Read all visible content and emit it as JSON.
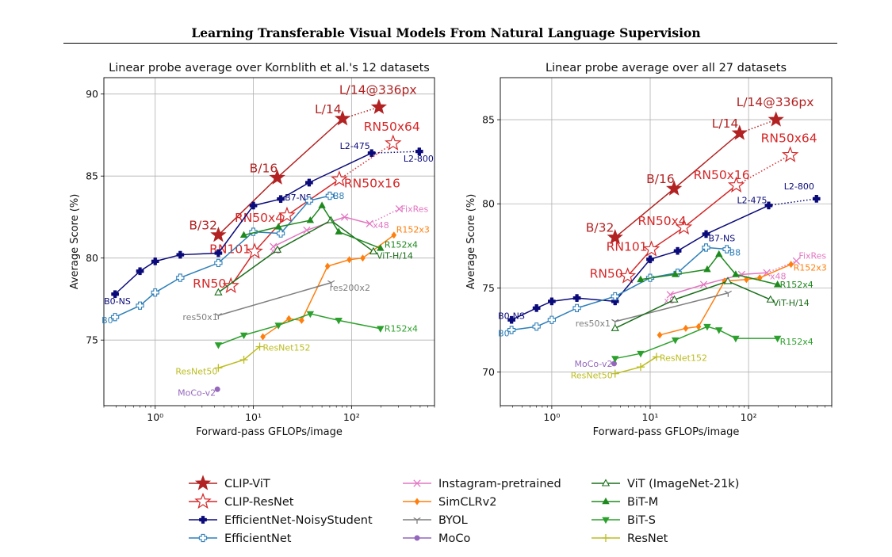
{
  "page": {
    "title": "Learning Transferable Visual Models From Natural Language Supervision"
  },
  "series_styles": {
    "CLIP-ViT": {
      "color": "#b22222",
      "marker": "star-filled",
      "dotted_last": true
    },
    "CLIP-ResNet": {
      "color": "#d62728",
      "marker": "star-open",
      "dotted_last": true
    },
    "EfficientNet-NoisyStudent": {
      "color": "#0a0a7a",
      "marker": "plus-filled",
      "dotted_last": true
    },
    "EfficientNet": {
      "color": "#2e7fb8",
      "marker": "plus-open"
    },
    "Instagram-pretrained": {
      "color": "#e377c2",
      "marker": "x",
      "dotted_last": true
    },
    "SimCLRv2": {
      "color": "#ff7f0e",
      "marker": "diamond"
    },
    "BYOL": {
      "color": "#7f7f7f",
      "marker": "tri-down"
    },
    "MoCo": {
      "color": "#9467bd",
      "marker": "circle"
    },
    "ViT (ImageNet-21k)": {
      "color": "#1a6e1a",
      "marker": "triangle-open"
    },
    "BiT-M": {
      "color": "#1e8a1e",
      "marker": "triangle"
    },
    "BiT-S": {
      "color": "#2ca02c",
      "marker": "triangle-down"
    },
    "ResNet": {
      "color": "#bcbd22",
      "marker": "plus-thin"
    }
  },
  "legend": {
    "columns": [
      [
        "CLIP-ViT",
        "CLIP-ResNet",
        "EfficientNet-NoisyStudent",
        "EfficientNet"
      ],
      [
        "Instagram-pretrained",
        "SimCLRv2",
        "BYOL",
        "MoCo"
      ],
      [
        "ViT (ImageNet-21k)",
        "BiT-M",
        "BiT-S",
        "ResNet"
      ]
    ]
  },
  "chart_data": [
    {
      "type": "line",
      "title": "Linear probe average over Kornblith et al.'s 12 datasets",
      "xlabel": "Forward-pass GFLOPs/image",
      "ylabel": "Average Score (%)",
      "xscale": "log",
      "xlim": [
        0.3,
        700
      ],
      "ylim": [
        71,
        91
      ],
      "xticks": [
        1,
        10,
        100
      ],
      "xtick_labels": [
        "10⁰",
        "10¹",
        "10²"
      ],
      "yticks": [
        75,
        80,
        85,
        90
      ],
      "grid": true,
      "series": [
        {
          "name": "CLIP-ViT",
          "x": [
            4.4,
            17.5,
            81,
            190
          ],
          "y": [
            81.4,
            84.9,
            88.5,
            89.2
          ],
          "labels": [
            {
              "i": 0,
              "text": "B/32"
            },
            {
              "i": 1,
              "text": "B/16"
            },
            {
              "i": 2,
              "text": "L/14"
            },
            {
              "i": 3,
              "text": "L/14@336px"
            }
          ]
        },
        {
          "name": "CLIP-ResNet",
          "x": [
            5.9,
            10.3,
            22,
            75,
            265
          ],
          "y": [
            78.3,
            80.4,
            82.6,
            84.8,
            87.0
          ],
          "labels": [
            {
              "i": 0,
              "text": "RN50"
            },
            {
              "i": 1,
              "text": "RN101"
            },
            {
              "i": 2,
              "text": "RN50x4"
            },
            {
              "i": 3,
              "text": "RN50x16"
            },
            {
              "i": 4,
              "text": "RN50x64"
            }
          ]
        },
        {
          "name": "EfficientNet-NoisyStudent",
          "x": [
            0.39,
            0.7,
            1.0,
            1.8,
            4.4,
            10,
            19,
            37,
            160,
            490
          ],
          "y": [
            77.8,
            79.2,
            79.8,
            80.2,
            80.3,
            83.2,
            83.6,
            84.6,
            86.4,
            86.5
          ],
          "labels": [
            {
              "i": 0,
              "text": "B0-NS"
            },
            {
              "i": 6,
              "text": "B7-NS"
            },
            {
              "i": 8,
              "text": "L2-475"
            },
            {
              "i": 9,
              "text": "L2-800"
            }
          ]
        },
        {
          "name": "EfficientNet",
          "x": [
            0.39,
            0.7,
            1.0,
            1.8,
            4.4,
            10,
            19,
            37,
            60
          ],
          "y": [
            76.4,
            77.1,
            77.9,
            78.8,
            79.7,
            81.6,
            81.5,
            83.5,
            83.8
          ],
          "labels": [
            {
              "i": 0,
              "text": "B0"
            },
            {
              "i": 8,
              "text": "B8"
            }
          ]
        },
        {
          "name": "Instagram-pretrained",
          "x": [
            16,
            35,
            85,
            153,
            306
          ],
          "y": [
            80.7,
            81.7,
            82.5,
            82.1,
            83.0
          ],
          "labels": [
            {
              "i": 0,
              "text": "x8"
            },
            {
              "i": 3,
              "text": "x48"
            },
            {
              "i": 4,
              "text": "FixRes"
            }
          ]
        },
        {
          "name": "SimCLRv2",
          "x": [
            12.5,
            23,
            31,
            57,
            95,
            130,
            270
          ],
          "y": [
            75.2,
            76.3,
            76.2,
            79.5,
            79.9,
            80.0,
            81.4
          ],
          "labels": [
            {
              "i": 6,
              "text": "R152x3"
            }
          ]
        },
        {
          "name": "BYOL",
          "x": [
            4.4,
            62
          ],
          "y": [
            76.5,
            78.5
          ],
          "labels": [
            {
              "i": 0,
              "text": "res50x1"
            },
            {
              "i": 1,
              "text": "res200x2"
            }
          ]
        },
        {
          "name": "MoCo",
          "x": [
            4.3
          ],
          "y": [
            72.0
          ],
          "labels": [
            {
              "i": 0,
              "text": "MoCo-v2"
            }
          ]
        },
        {
          "name": "ViT (ImageNet-21k)",
          "x": [
            4.4,
            17.6,
            61.6,
            167
          ],
          "y": [
            77.9,
            80.5,
            82.3,
            80.4
          ],
          "labels": [
            {
              "i": 3,
              "text": "ViT-H/14"
            }
          ]
        },
        {
          "name": "BiT-M",
          "x": [
            8,
            18,
            38,
            50,
            74,
            197
          ],
          "y": [
            81.4,
            81.9,
            82.3,
            83.2,
            81.6,
            80.6
          ],
          "labels": [
            {
              "i": 5,
              "text": "R152x4"
            }
          ]
        },
        {
          "name": "BiT-S",
          "x": [
            4.4,
            8,
            18,
            38,
            74,
            197
          ],
          "y": [
            74.7,
            75.3,
            75.9,
            76.6,
            76.2,
            75.7
          ],
          "labels": [
            {
              "i": 5,
              "text": "R152x4"
            }
          ]
        },
        {
          "name": "ResNet",
          "x": [
            4.4,
            8,
            11.6
          ],
          "y": [
            73.3,
            73.8,
            74.6
          ],
          "labels": [
            {
              "i": 0,
              "text": "ResNet50"
            },
            {
              "i": 2,
              "text": "ResNet152"
            }
          ]
        }
      ]
    },
    {
      "type": "line",
      "title": "Linear probe average over all 27 datasets",
      "xlabel": "Forward-pass GFLOPs/image",
      "ylabel": "Average Score (%)",
      "xscale": "log",
      "xlim": [
        0.3,
        700
      ],
      "ylim": [
        68,
        87.5
      ],
      "xticks": [
        1,
        10,
        100
      ],
      "xtick_labels": [
        "10⁰",
        "10¹",
        "10²"
      ],
      "yticks": [
        70,
        75,
        80,
        85
      ],
      "grid": true,
      "series": [
        {
          "name": "CLIP-ViT",
          "x": [
            4.4,
            17.5,
            81,
            190
          ],
          "y": [
            78.0,
            80.9,
            84.2,
            85.0
          ],
          "labels": [
            {
              "i": 0,
              "text": "B/32"
            },
            {
              "i": 1,
              "text": "B/16"
            },
            {
              "i": 2,
              "text": "L/14"
            },
            {
              "i": 3,
              "text": "L/14@336px"
            }
          ]
        },
        {
          "name": "CLIP-ResNet",
          "x": [
            5.9,
            10.3,
            22,
            75,
            265
          ],
          "y": [
            75.7,
            77.3,
            78.6,
            81.1,
            82.9
          ],
          "labels": [
            {
              "i": 0,
              "text": "RN50"
            },
            {
              "i": 1,
              "text": "RN101"
            },
            {
              "i": 2,
              "text": "RN50x4"
            },
            {
              "i": 3,
              "text": "RN50x16"
            },
            {
              "i": 4,
              "text": "RN50x64"
            }
          ]
        },
        {
          "name": "EfficientNet-NoisyStudent",
          "x": [
            0.39,
            0.7,
            1.0,
            1.8,
            4.4,
            10,
            19,
            37,
            160,
            490
          ],
          "y": [
            73.1,
            73.8,
            74.2,
            74.4,
            74.2,
            76.7,
            77.2,
            78.2,
            79.9,
            80.3
          ],
          "labels": [
            {
              "i": 0,
              "text": "B0-NS"
            },
            {
              "i": 7,
              "text": "B7-NS"
            },
            {
              "i": 8,
              "text": "L2-475"
            },
            {
              "i": 9,
              "text": "L2-800"
            }
          ]
        },
        {
          "name": "EfficientNet",
          "x": [
            0.39,
            0.7,
            1.0,
            1.8,
            4.4,
            10,
            19,
            37,
            60
          ],
          "y": [
            72.5,
            72.7,
            73.1,
            73.8,
            74.5,
            75.6,
            75.9,
            77.4,
            77.3
          ],
          "labels": [
            {
              "i": 0,
              "text": "B0"
            },
            {
              "i": 8,
              "text": "B8"
            }
          ]
        },
        {
          "name": "Instagram-pretrained",
          "x": [
            16,
            35,
            85,
            153,
            306
          ],
          "y": [
            74.6,
            75.2,
            75.8,
            75.9,
            76.6
          ],
          "labels": [
            {
              "i": 0,
              "text": "x8"
            },
            {
              "i": 3,
              "text": "x48"
            },
            {
              "i": 4,
              "text": "FixRes"
            }
          ]
        },
        {
          "name": "SimCLRv2",
          "x": [
            12.5,
            23,
            31,
            57,
            95,
            130,
            270
          ],
          "y": [
            72.2,
            72.6,
            72.7,
            75.4,
            75.5,
            75.6,
            76.4
          ],
          "labels": [
            {
              "i": 6,
              "text": "R152x3"
            }
          ]
        },
        {
          "name": "BYOL",
          "x": [
            4.4,
            62
          ],
          "y": [
            73.0,
            74.7
          ],
          "labels": [
            {
              "i": 0,
              "text": "res50x1"
            }
          ]
        },
        {
          "name": "MoCo",
          "x": [
            4.3
          ],
          "y": [
            70.5
          ],
          "labels": [
            {
              "i": 0,
              "text": "MoCo-v2"
            }
          ]
        },
        {
          "name": "ViT (ImageNet-21k)",
          "x": [
            4.4,
            17.6,
            61.6,
            167
          ],
          "y": [
            72.6,
            74.3,
            75.4,
            74.3
          ],
          "labels": [
            {
              "i": 3,
              "text": "ViT-H/14"
            }
          ]
        },
        {
          "name": "BiT-M",
          "x": [
            8,
            18,
            38,
            50,
            74,
            197
          ],
          "y": [
            75.5,
            75.8,
            76.1,
            77.0,
            75.8,
            75.2
          ],
          "labels": [
            {
              "i": 5,
              "text": "R152x4"
            }
          ]
        },
        {
          "name": "BiT-S",
          "x": [
            4.4,
            8,
            18,
            38,
            50,
            74,
            197
          ],
          "y": [
            70.8,
            71.1,
            71.9,
            72.7,
            72.5,
            72.0,
            72.0
          ],
          "labels": [
            {
              "i": 6,
              "text": "R152x4"
            }
          ]
        },
        {
          "name": "ResNet",
          "x": [
            4.4,
            8,
            11.6
          ],
          "y": [
            69.9,
            70.3,
            70.9
          ],
          "labels": [
            {
              "i": 0,
              "text": "ResNet50"
            },
            {
              "i": 2,
              "text": "ResNet152"
            }
          ]
        }
      ]
    }
  ]
}
